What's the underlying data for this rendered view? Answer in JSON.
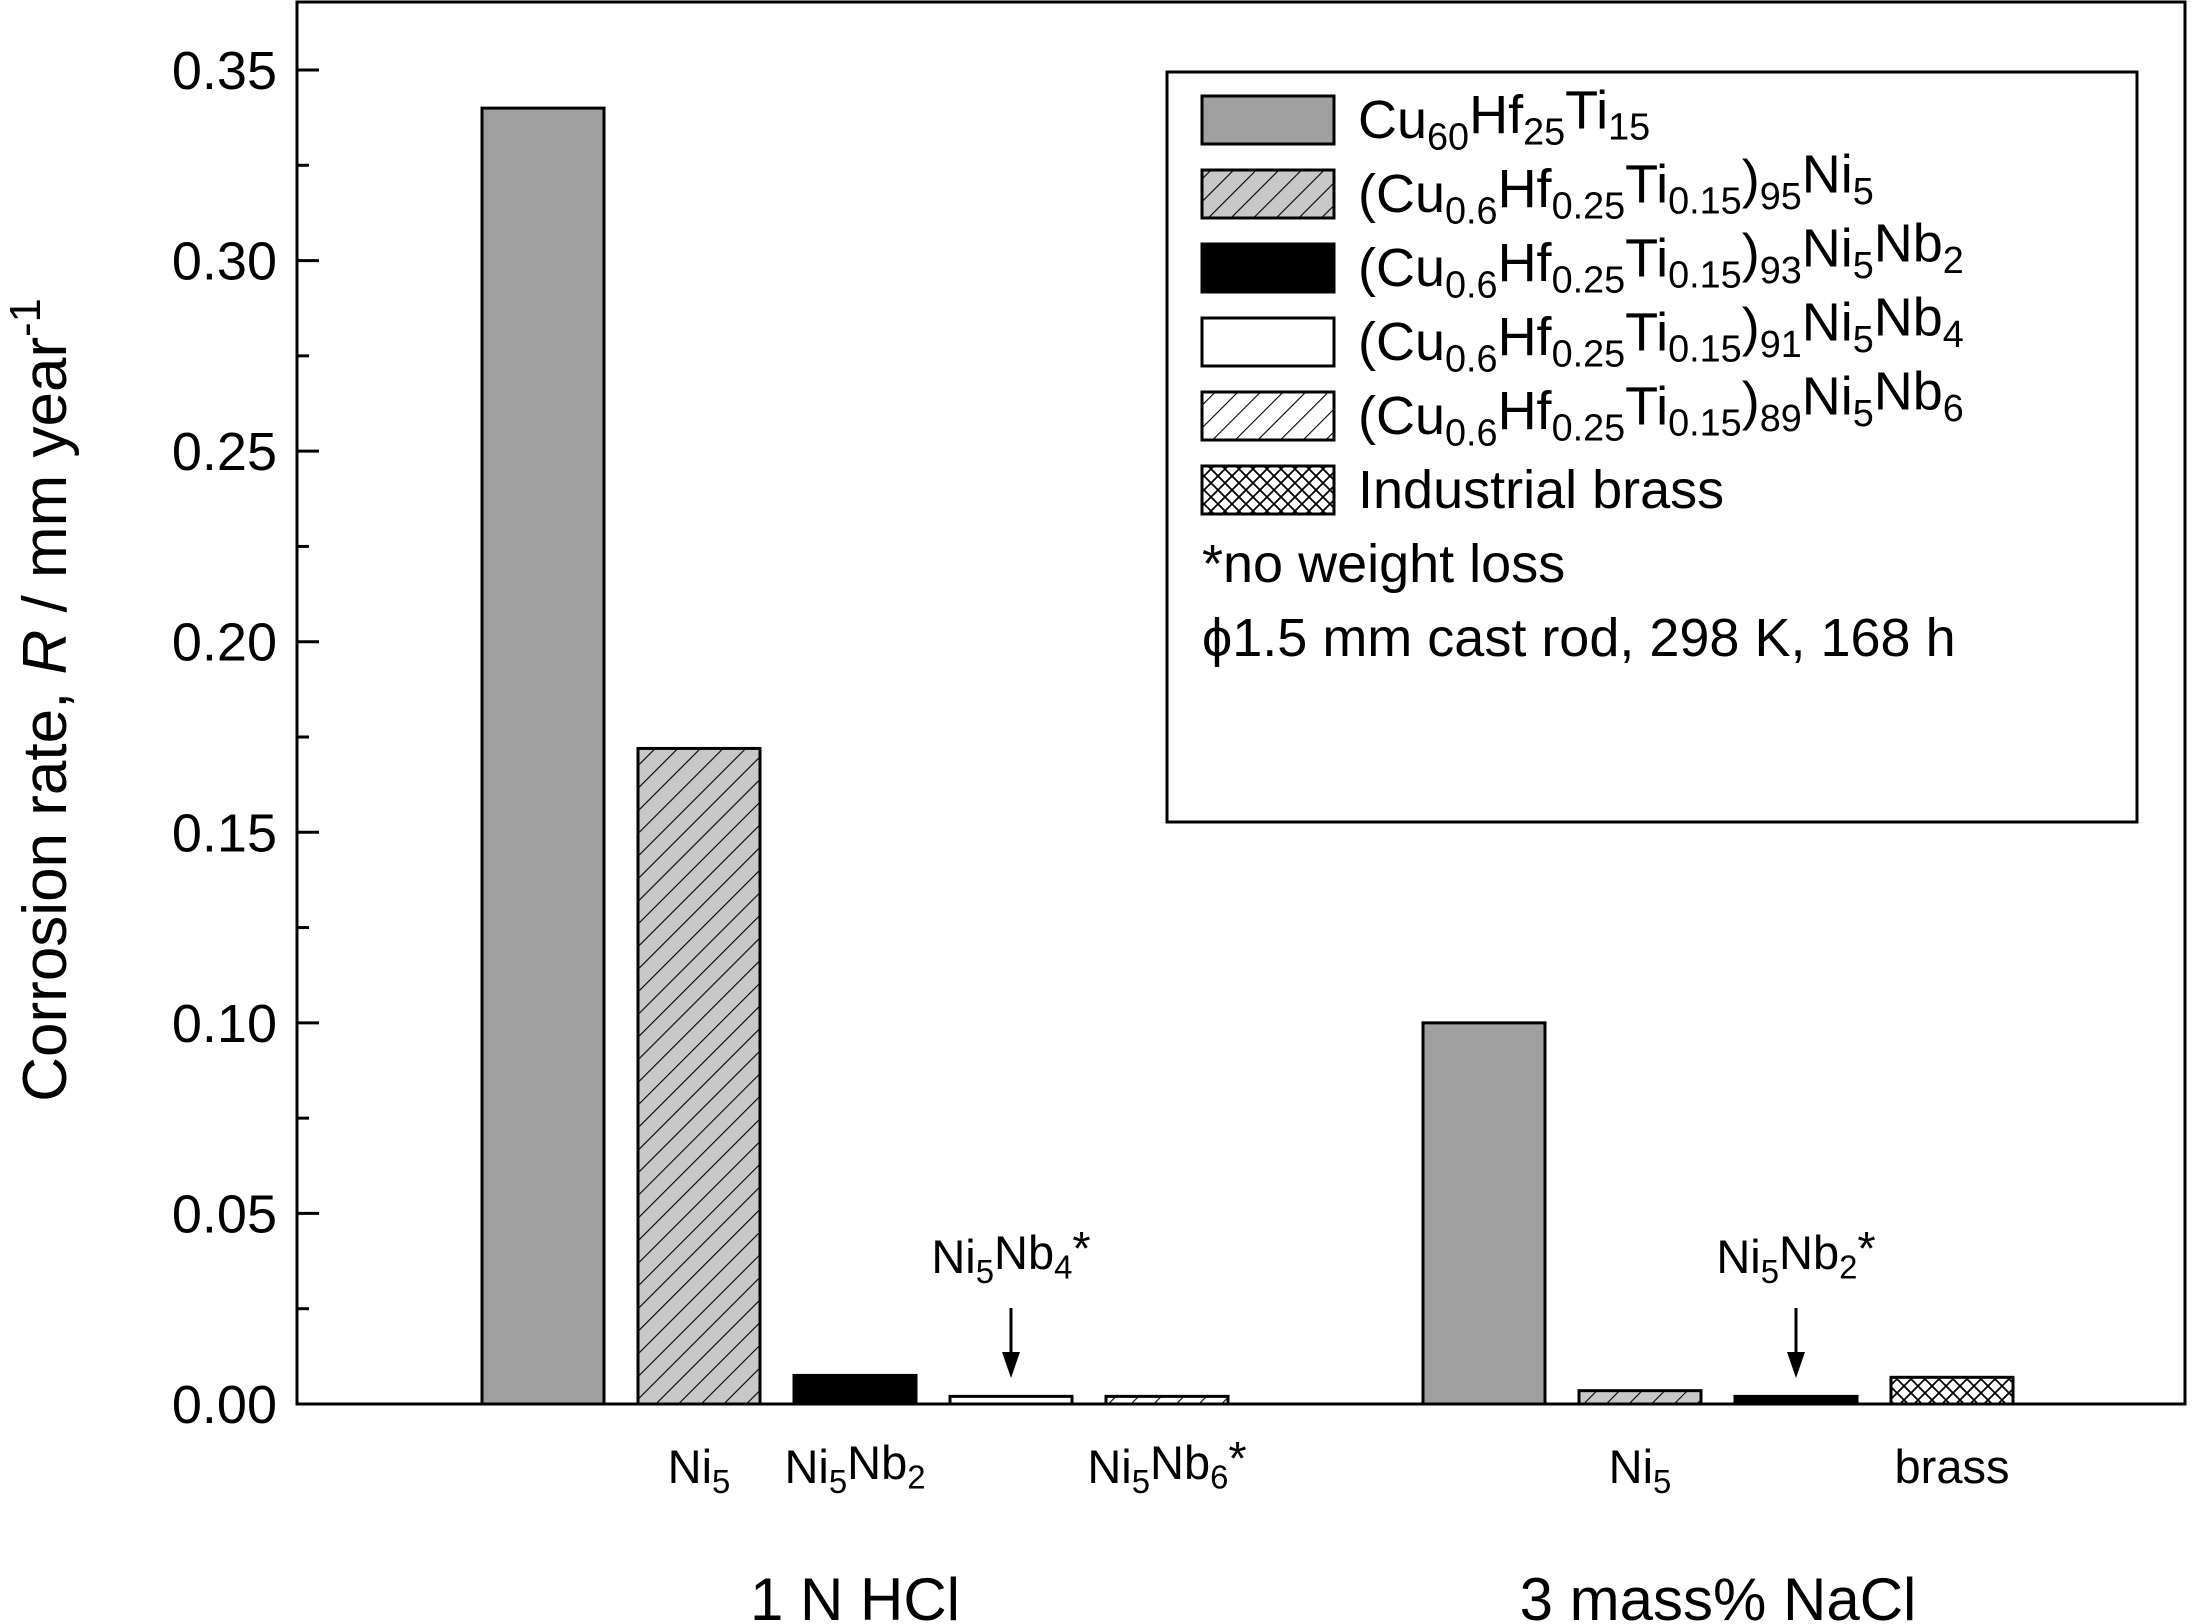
{
  "chart_data": {
    "type": "bar",
    "ylabel": {
      "prefix": "Corrosion rate, ",
      "italic": "R",
      "suffix": " / mm year",
      "sup": "-1"
    },
    "ylim": [
      0,
      0.36
    ],
    "yticks": [
      "0.00",
      "0.05",
      "0.10",
      "0.15",
      "0.20",
      "0.25",
      "0.30",
      "0.35"
    ],
    "ytick_values": [
      0,
      0.05,
      0.1,
      0.15,
      0.2,
      0.25,
      0.3,
      0.35
    ],
    "groups": [
      {
        "label": "1 N HCl",
        "bars": [
          {
            "series": 0,
            "value": 0.34,
            "label": []
          },
          {
            "series": 1,
            "value": 0.172,
            "label": [
              [
                "Ni",
                ""
              ],
              [
                "5",
                "sub"
              ]
            ]
          },
          {
            "series": 2,
            "value": 0.0075,
            "label": [
              [
                "Ni",
                ""
              ],
              [
                "5",
                "sub"
              ],
              [
                "Nb",
                ""
              ],
              [
                "2",
                "sub"
              ]
            ]
          },
          {
            "series": 3,
            "value": 0.002,
            "label": []
          },
          {
            "series": 4,
            "value": 0.002,
            "label": [
              [
                "Ni",
                ""
              ],
              [
                "5",
                "sub"
              ],
              [
                "Nb",
                ""
              ],
              [
                "6",
                "sub"
              ],
              [
                "*",
                ""
              ]
            ]
          }
        ],
        "annotation": {
          "bar": 3,
          "text": [
            [
              "Ni",
              ""
            ],
            [
              "5",
              "sub"
            ],
            [
              "Nb",
              ""
            ],
            [
              "4",
              "sub"
            ],
            [
              "*",
              ""
            ]
          ]
        }
      },
      {
        "label": "3 mass% NaCl",
        "bars": [
          {
            "series": 0,
            "value": 0.1,
            "label": []
          },
          {
            "series": 1,
            "value": 0.0035,
            "label": [
              [
                "Ni",
                ""
              ],
              [
                "5",
                "sub"
              ]
            ]
          },
          {
            "series": 2,
            "value": 0.002,
            "label": []
          },
          {
            "series": 5,
            "value": 0.007,
            "label": [
              [
                "brass",
                ""
              ]
            ]
          }
        ],
        "annotation": {
          "bar": 2,
          "text": [
            [
              "Ni",
              ""
            ],
            [
              "5",
              "sub"
            ],
            [
              "Nb",
              ""
            ],
            [
              "2",
              "sub"
            ],
            [
              "*",
              ""
            ]
          ]
        }
      }
    ],
    "series": [
      {
        "name": [
          [
            "Cu",
            ""
          ],
          [
            "60",
            "sub"
          ],
          [
            "Hf",
            ""
          ],
          [
            "25",
            "sub"
          ],
          [
            "Ti",
            ""
          ],
          [
            "15",
            "sub"
          ]
        ],
        "fill": "#a0a0a0",
        "pattern": "solid"
      },
      {
        "name": [
          [
            "(Cu",
            ""
          ],
          [
            "0.6",
            "sub"
          ],
          [
            "Hf",
            ""
          ],
          [
            "0.25",
            "sub"
          ],
          [
            "Ti",
            ""
          ],
          [
            "0.15",
            "sub"
          ],
          [
            ")",
            ""
          ],
          [
            "95",
            "sub"
          ],
          [
            "Ni",
            ""
          ],
          [
            "5",
            "sub"
          ]
        ],
        "fill": "#c8c8c8",
        "pattern": "hatch"
      },
      {
        "name": [
          [
            "(Cu",
            ""
          ],
          [
            "0.6",
            "sub"
          ],
          [
            "Hf",
            ""
          ],
          [
            "0.25",
            "sub"
          ],
          [
            "Ti",
            ""
          ],
          [
            "0.15",
            "sub"
          ],
          [
            ")",
            ""
          ],
          [
            "93",
            "sub"
          ],
          [
            "Ni",
            ""
          ],
          [
            "5",
            "sub"
          ],
          [
            "Nb",
            ""
          ],
          [
            "2",
            "sub"
          ]
        ],
        "fill": "#000000",
        "pattern": "solid"
      },
      {
        "name": [
          [
            "(Cu",
            ""
          ],
          [
            "0.6",
            "sub"
          ],
          [
            "Hf",
            ""
          ],
          [
            "0.25",
            "sub"
          ],
          [
            "Ti",
            ""
          ],
          [
            "0.15",
            "sub"
          ],
          [
            ")",
            ""
          ],
          [
            "91",
            "sub"
          ],
          [
            "Ni",
            ""
          ],
          [
            "5",
            "sub"
          ],
          [
            "Nb",
            ""
          ],
          [
            "4",
            "sub"
          ]
        ],
        "fill": "#ffffff",
        "pattern": "solid"
      },
      {
        "name": [
          [
            "(Cu",
            ""
          ],
          [
            "0.6",
            "sub"
          ],
          [
            "Hf",
            ""
          ],
          [
            "0.25",
            "sub"
          ],
          [
            "Ti",
            ""
          ],
          [
            "0.15",
            "sub"
          ],
          [
            ")",
            ""
          ],
          [
            "89",
            "sub"
          ],
          [
            "Ni",
            ""
          ],
          [
            "5",
            "sub"
          ],
          [
            "Nb",
            ""
          ],
          [
            "6",
            "sub"
          ]
        ],
        "fill": "#ffffff",
        "pattern": "hatch"
      },
      {
        "name": [
          [
            "Industrial brass",
            ""
          ]
        ],
        "fill": "#ffffff",
        "pattern": "crosshatch"
      }
    ],
    "legend_notes": [
      "*no weight loss",
      "ϕ1.5 mm cast rod, 298 K, 168 h"
    ],
    "legend_position": "top-right",
    "grid": false
  }
}
